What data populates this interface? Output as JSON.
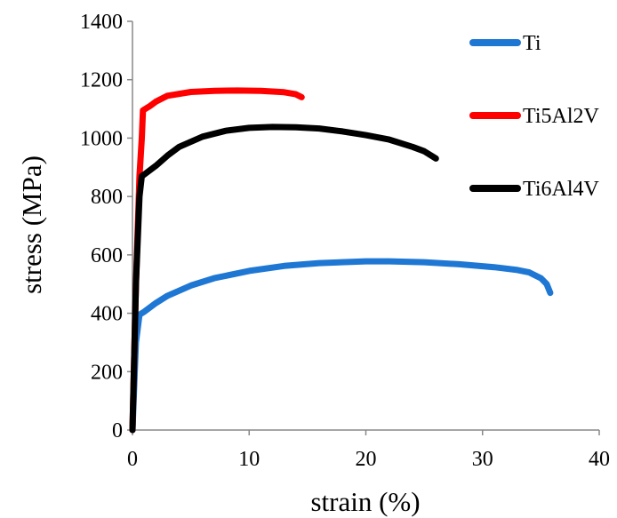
{
  "chart_data": {
    "type": "line",
    "title": "",
    "xlabel": "strain (%)",
    "ylabel": "stress (MPa)",
    "xlim": [
      0,
      40
    ],
    "ylim": [
      0,
      1400
    ],
    "xticks": [
      0,
      10,
      20,
      30,
      40
    ],
    "yticks": [
      0,
      200,
      400,
      600,
      800,
      1000,
      1200,
      1400
    ],
    "grid": false,
    "legend_position": "top-right",
    "series": [
      {
        "name": "Ti",
        "color": "#1f77d4",
        "x": [
          0,
          0.3,
          0.6,
          1,
          2,
          3,
          5,
          7,
          10,
          13,
          16,
          20,
          22,
          25,
          28,
          31,
          33,
          34,
          35,
          35.5,
          35.8
        ],
        "y": [
          0,
          300,
          395,
          405,
          435,
          460,
          495,
          520,
          545,
          562,
          572,
          578,
          578,
          575,
          568,
          558,
          548,
          540,
          520,
          500,
          470
        ]
      },
      {
        "name": "Ti5Al2V",
        "color": "#ff0000",
        "x": [
          0,
          0.3,
          0.6,
          0.8,
          0.9,
          1.5,
          2,
          3,
          5,
          7,
          9,
          11,
          13,
          14,
          14.5
        ],
        "y": [
          0,
          500,
          870,
          1000,
          1095,
          1110,
          1125,
          1145,
          1158,
          1162,
          1163,
          1162,
          1157,
          1150,
          1140
        ]
      },
      {
        "name": "Ti6Al4V",
        "color": "#000000",
        "x": [
          0,
          0.3,
          0.6,
          0.8,
          1,
          2,
          3,
          4,
          6,
          8,
          10,
          12,
          14,
          16,
          18,
          20,
          22,
          24,
          25,
          26
        ],
        "y": [
          0,
          500,
          800,
          870,
          875,
          905,
          940,
          970,
          1005,
          1025,
          1035,
          1038,
          1037,
          1033,
          1023,
          1010,
          995,
          970,
          955,
          930
        ]
      }
    ]
  }
}
